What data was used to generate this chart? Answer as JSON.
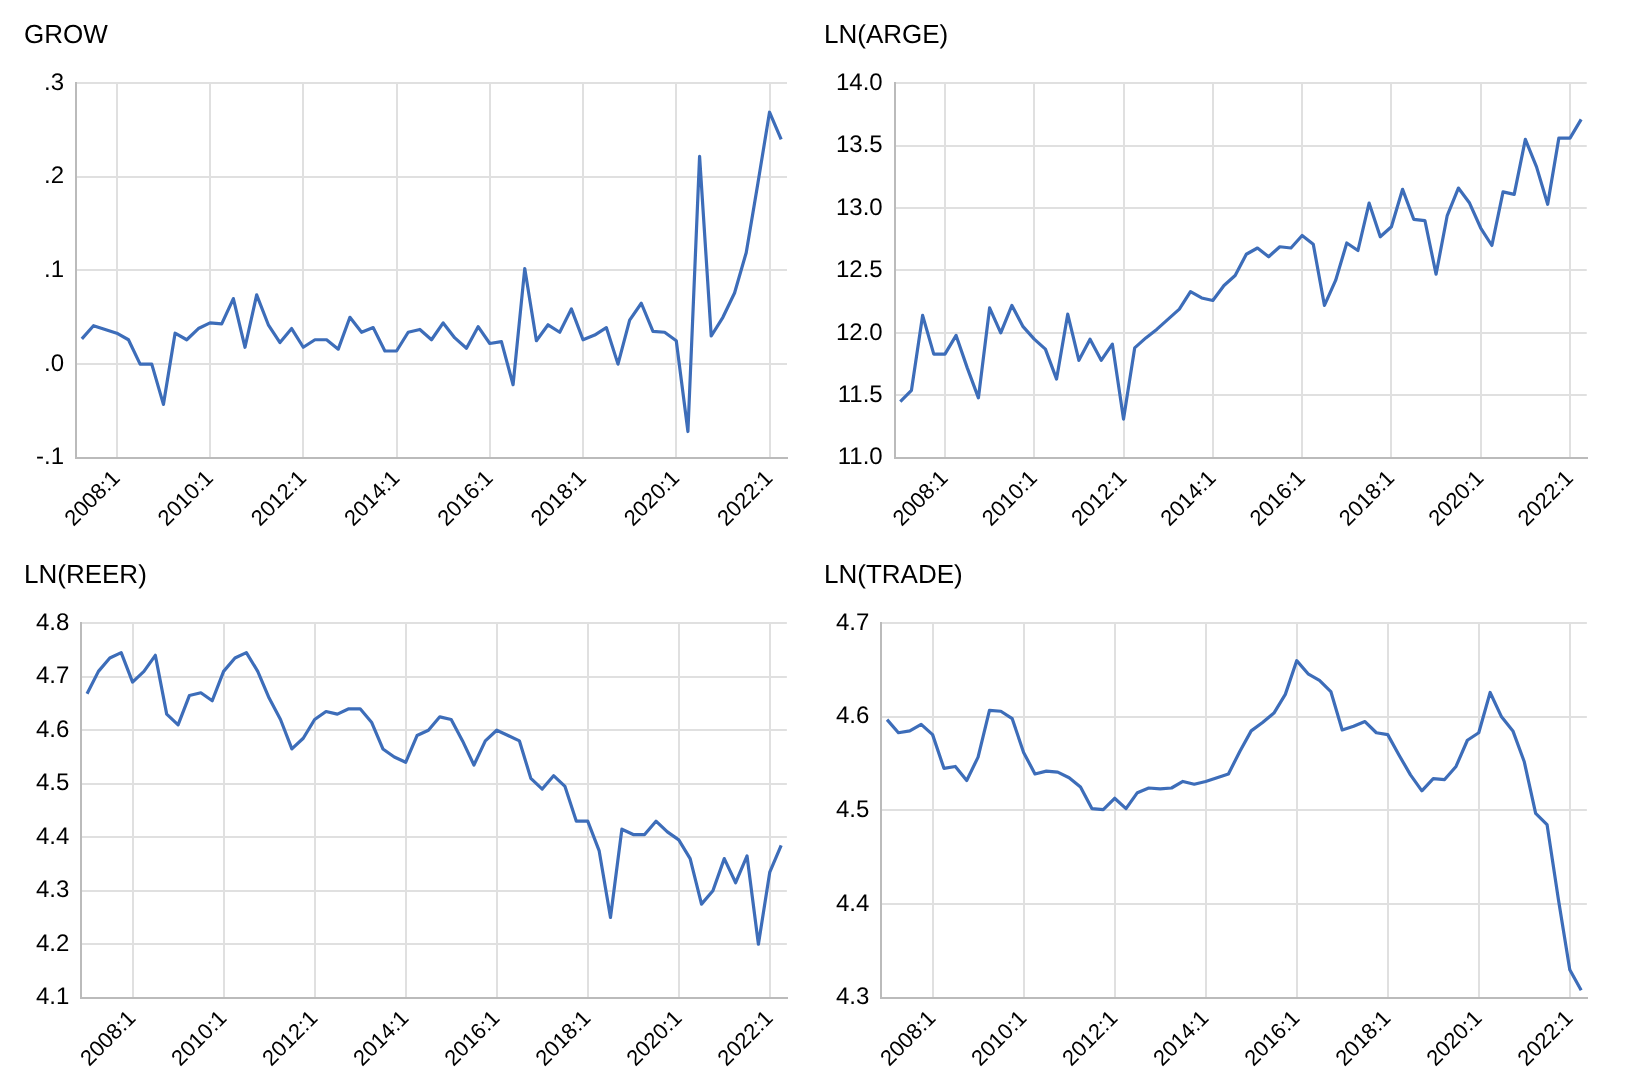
{
  "chart_data": [
    {
      "type": "line",
      "title": "GROW",
      "categories": [
        null,
        null,
        null,
        "2008:1",
        null,
        null,
        null,
        null,
        null,
        null,
        null,
        "2010:1",
        null,
        null,
        null,
        null,
        null,
        null,
        null,
        "2012:1",
        null,
        null,
        null,
        null,
        null,
        null,
        null,
        "2014:1",
        null,
        null,
        null,
        null,
        null,
        null,
        null,
        "2016:1",
        null,
        null,
        null,
        null,
        null,
        null,
        null,
        "2018:1",
        null,
        null,
        null,
        null,
        null,
        null,
        null,
        "2020:1",
        null,
        null,
        null,
        null,
        null,
        null,
        null,
        "2022:1",
        null
      ],
      "series": [
        {
          "color": "#3d6db9",
          "values": [
            0.027,
            0.041,
            0.037,
            0.033,
            0.026,
            0.0,
            0.0,
            -0.043,
            0.033,
            0.026,
            0.038,
            0.044,
            0.043,
            0.07,
            0.018,
            0.074,
            0.042,
            0.023,
            0.038,
            0.018,
            0.026,
            0.026,
            0.016,
            0.05,
            0.034,
            0.039,
            0.014,
            0.014,
            0.034,
            0.037,
            0.026,
            0.044,
            0.028,
            0.017,
            0.04,
            0.022,
            0.024,
            -0.022,
            0.102,
            0.025,
            0.042,
            0.034,
            0.059,
            0.026,
            0.031,
            0.039,
            0.0,
            0.047,
            0.065,
            0.035,
            0.034,
            0.025,
            -0.072,
            0.222,
            0.03,
            0.05,
            0.076,
            0.119,
            0.193,
            0.269,
            0.24
          ]
        }
      ],
      "ylim": [
        -0.1,
        0.3
      ],
      "yticks": [
        {
          "value": -0.1,
          "label": "-.1"
        },
        {
          "value": 0,
          "label": ".0"
        },
        {
          "value": 0.1,
          "label": ".1"
        },
        {
          "value": 0.2,
          "label": ".2"
        },
        {
          "value": 0.3,
          "label": ".3"
        }
      ],
      "grid": true,
      "legend": false
    },
    {
      "type": "line",
      "title": "LN(ARGE)",
      "categories": [
        null,
        null,
        null,
        null,
        "2008:1",
        null,
        null,
        null,
        null,
        null,
        null,
        null,
        "2010:1",
        null,
        null,
        null,
        null,
        null,
        null,
        null,
        "2012:1",
        null,
        null,
        null,
        null,
        null,
        null,
        null,
        "2014:1",
        null,
        null,
        null,
        null,
        null,
        null,
        null,
        "2016:1",
        null,
        null,
        null,
        null,
        null,
        null,
        null,
        "2018:1",
        null,
        null,
        null,
        null,
        null,
        null,
        null,
        "2020:1",
        null,
        null,
        null,
        null,
        null,
        null,
        null,
        "2022:1",
        null
      ],
      "series": [
        {
          "color": "#3d6db9",
          "values": [
            11.45,
            11.54,
            12.14,
            11.83,
            11.83,
            11.98,
            11.72,
            11.48,
            12.2,
            12.0,
            12.22,
            12.05,
            11.95,
            11.87,
            11.63,
            12.15,
            11.78,
            11.95,
            11.78,
            11.91,
            11.31,
            11.88,
            11.96,
            12.03,
            12.11,
            12.19,
            12.33,
            12.28,
            12.26,
            12.38,
            12.46,
            12.63,
            12.68,
            12.61,
            12.69,
            12.68,
            12.78,
            12.71,
            12.22,
            12.42,
            12.72,
            12.66,
            13.04,
            12.77,
            12.85,
            13.15,
            12.91,
            12.9,
            12.47,
            12.94,
            13.16,
            13.04,
            12.84,
            12.7,
            13.13,
            13.11,
            13.55,
            13.33,
            13.03,
            13.56,
            13.56,
            13.71
          ]
        }
      ],
      "ylim": [
        11,
        14
      ],
      "yticks": [
        {
          "value": 11,
          "label": "11.0"
        },
        {
          "value": 11.5,
          "label": "11.5"
        },
        {
          "value": 12,
          "label": "12.0"
        },
        {
          "value": 12.5,
          "label": "12.5"
        },
        {
          "value": 13,
          "label": "13.0"
        },
        {
          "value": 13.5,
          "label": "13.5"
        },
        {
          "value": 14,
          "label": "14.0"
        }
      ],
      "grid": true,
      "legend": false
    },
    {
      "type": "line",
      "title": "LN(REER)",
      "categories": [
        null,
        null,
        null,
        null,
        "2008:1",
        null,
        null,
        null,
        null,
        null,
        null,
        null,
        "2010:1",
        null,
        null,
        null,
        null,
        null,
        null,
        null,
        "2012:1",
        null,
        null,
        null,
        null,
        null,
        null,
        null,
        "2014:1",
        null,
        null,
        null,
        null,
        null,
        null,
        null,
        "2016:1",
        null,
        null,
        null,
        null,
        null,
        null,
        null,
        "2018:1",
        null,
        null,
        null,
        null,
        null,
        null,
        null,
        "2020:1",
        null,
        null,
        null,
        null,
        null,
        null,
        null,
        "2022:1",
        null
      ],
      "series": [
        {
          "color": "#3d6db9",
          "values": [
            4.668,
            4.71,
            4.735,
            4.745,
            4.69,
            4.71,
            4.74,
            4.63,
            4.61,
            4.665,
            4.67,
            4.655,
            4.71,
            4.735,
            4.745,
            4.71,
            4.66,
            4.62,
            4.565,
            4.585,
            4.62,
            4.635,
            4.63,
            4.64,
            4.64,
            4.615,
            4.565,
            4.55,
            4.54,
            4.59,
            4.6,
            4.625,
            4.62,
            4.58,
            4.535,
            4.58,
            4.6,
            4.59,
            4.58,
            4.51,
            4.49,
            4.515,
            4.495,
            4.43,
            4.43,
            4.375,
            4.25,
            4.415,
            4.405,
            4.405,
            4.43,
            4.41,
            4.395,
            4.36,
            4.275,
            4.3,
            4.36,
            4.315,
            4.365,
            4.2,
            4.335,
            4.385
          ]
        }
      ],
      "ylim": [
        4.1,
        4.8
      ],
      "yticks": [
        4.1,
        4.2,
        4.3,
        4.4,
        4.5,
        4.6,
        4.7,
        4.8
      ],
      "grid": true,
      "legend": false
    },
    {
      "type": "line",
      "title": "LN(TRADE)",
      "categories": [
        null,
        null,
        null,
        null,
        "2008:1",
        null,
        null,
        null,
        null,
        null,
        null,
        null,
        "2010:1",
        null,
        null,
        null,
        null,
        null,
        null,
        null,
        "2012:1",
        null,
        null,
        null,
        null,
        null,
        null,
        null,
        "2014:1",
        null,
        null,
        null,
        null,
        null,
        null,
        null,
        "2016:1",
        null,
        null,
        null,
        null,
        null,
        null,
        null,
        "2018:1",
        null,
        null,
        null,
        null,
        null,
        null,
        null,
        "2020:1",
        null,
        null,
        null,
        null,
        null,
        null,
        null,
        "2022:1",
        null
      ],
      "series": [
        {
          "color": "#3d6db9",
          "values": [
            4.597,
            4.583,
            4.585,
            4.592,
            4.581,
            4.545,
            4.547,
            4.532,
            4.557,
            4.607,
            4.606,
            4.598,
            4.562,
            4.539,
            4.542,
            4.541,
            4.535,
            4.525,
            4.502,
            4.501,
            4.513,
            4.502,
            4.519,
            4.524,
            4.523,
            4.524,
            4.531,
            4.528,
            4.531,
            4.535,
            4.539,
            4.563,
            4.585,
            4.594,
            4.604,
            4.624,
            4.66,
            4.646,
            4.639,
            4.627,
            4.586,
            4.59,
            4.595,
            4.583,
            4.581,
            4.559,
            4.538,
            4.521,
            4.534,
            4.533,
            4.547,
            4.575,
            4.583,
            4.626,
            4.6,
            4.585,
            4.552,
            4.497,
            4.485,
            4.405,
            4.33,
            4.308
          ]
        }
      ],
      "ylim": [
        4.3,
        4.7
      ],
      "yticks": [
        4.3,
        4.4,
        4.5,
        4.6,
        4.7
      ],
      "grid": true,
      "legend": false
    }
  ]
}
